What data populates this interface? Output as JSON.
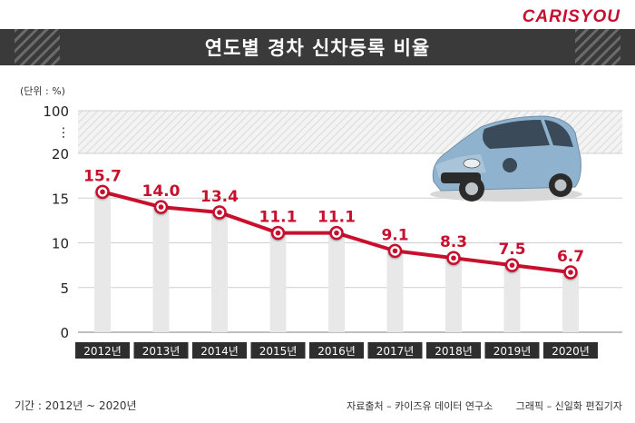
{
  "brand": "CARISYOU",
  "title": "연도별 경차 신차등록 비율",
  "unit_label": "(단위 : %)",
  "axis_break": "⋮",
  "footer": {
    "period": "기간 : 2012년 ~ 2020년",
    "source": "자료출처 – 카이즈유 데이터 연구소",
    "graphic": "그래픽 – 신일화 편집기자"
  },
  "colors": {
    "accent": "#c8102e",
    "bar": "#e8e8e8",
    "title_bg": "#3a3a3a",
    "year_label_bg": "#2e2e2e"
  },
  "chart_data": {
    "type": "line",
    "title": "연도별 경차 신차등록 비율",
    "ylabel": "(단위 : %)",
    "xlabel": "",
    "categories": [
      "2012년",
      "2013년",
      "2014년",
      "2015년",
      "2016년",
      "2017년",
      "2018년",
      "2019년",
      "2020년"
    ],
    "values": [
      15.7,
      14.0,
      13.4,
      11.1,
      11.1,
      9.1,
      8.3,
      7.5,
      6.7
    ],
    "value_labels": [
      "15.7",
      "14.0",
      "13.4",
      "11.1",
      "11.1",
      "9.1",
      "8.3",
      "7.5",
      "6.7"
    ],
    "yticks": [
      "0",
      "5",
      "10",
      "15",
      "20",
      "100"
    ],
    "ylim": [
      0,
      20
    ],
    "broken_axis_top": 100,
    "grid": true
  }
}
